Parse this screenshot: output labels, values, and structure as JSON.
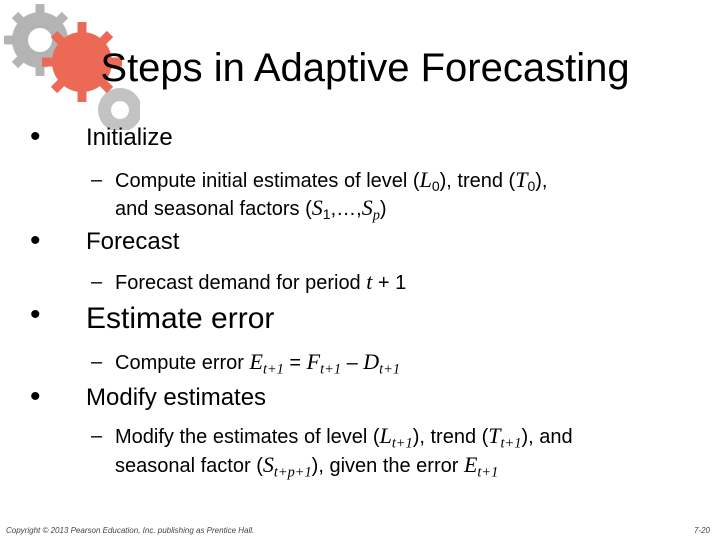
{
  "title": "Steps in Adaptive Forecasting",
  "bullet_symbol": "•",
  "dash_symbol": "–",
  "bullets": [
    {
      "label": "Initialize"
    },
    {
      "label": "Forecast"
    },
    {
      "label": "Estimate error"
    },
    {
      "label": "Modify estimates"
    }
  ],
  "sublines": [
    [
      [
        "Compute initial estimates of level (",
        "n"
      ],
      [
        "L",
        "v"
      ],
      [
        "0",
        "sub"
      ],
      [
        "), trend (",
        "n"
      ],
      [
        "T",
        "v"
      ],
      [
        "0",
        "sub"
      ],
      [
        "),",
        "n"
      ]
    ],
    [
      [
        "and seasonal factors (",
        "n"
      ],
      [
        "S",
        "v"
      ],
      [
        "1",
        "sub"
      ],
      [
        ",…,",
        "n"
      ],
      [
        "S",
        "v"
      ],
      [
        "p",
        "subv"
      ],
      [
        ")",
        "n"
      ]
    ],
    [
      [
        "Forecast demand for period ",
        "n"
      ],
      [
        "t",
        "v"
      ],
      [
        " + 1",
        "n"
      ]
    ],
    [
      [
        "Compute error ",
        "n"
      ],
      [
        "E",
        "v"
      ],
      [
        "t+1",
        "subv"
      ],
      [
        " = ",
        "n"
      ],
      [
        "F",
        "v"
      ],
      [
        "t+1",
        "subv"
      ],
      [
        " – ",
        "n"
      ],
      [
        "D",
        "v"
      ],
      [
        "t+1",
        "subv"
      ]
    ],
    [
      [
        "Modify the estimates of level (",
        "n"
      ],
      [
        "L",
        "v"
      ],
      [
        "t+1",
        "subv"
      ],
      [
        "), trend (",
        "n"
      ],
      [
        "T",
        "v"
      ],
      [
        "t+1",
        "subv"
      ],
      [
        "), and",
        "n"
      ]
    ],
    [
      [
        "seasonal factor (",
        "n"
      ],
      [
        "S",
        "v"
      ],
      [
        "t+p+1",
        "subv"
      ],
      [
        "), given the error ",
        "n"
      ],
      [
        "E",
        "v"
      ],
      [
        "t+1",
        "subv"
      ]
    ]
  ],
  "footer": {
    "copyright": "Copyright © 2013 Pearson Education, Inc. publishing as Prentice Hall.",
    "page": "7-20"
  },
  "colors": {
    "gear_red": "#ec6a55",
    "gear_gray": "#a8a8a8"
  }
}
